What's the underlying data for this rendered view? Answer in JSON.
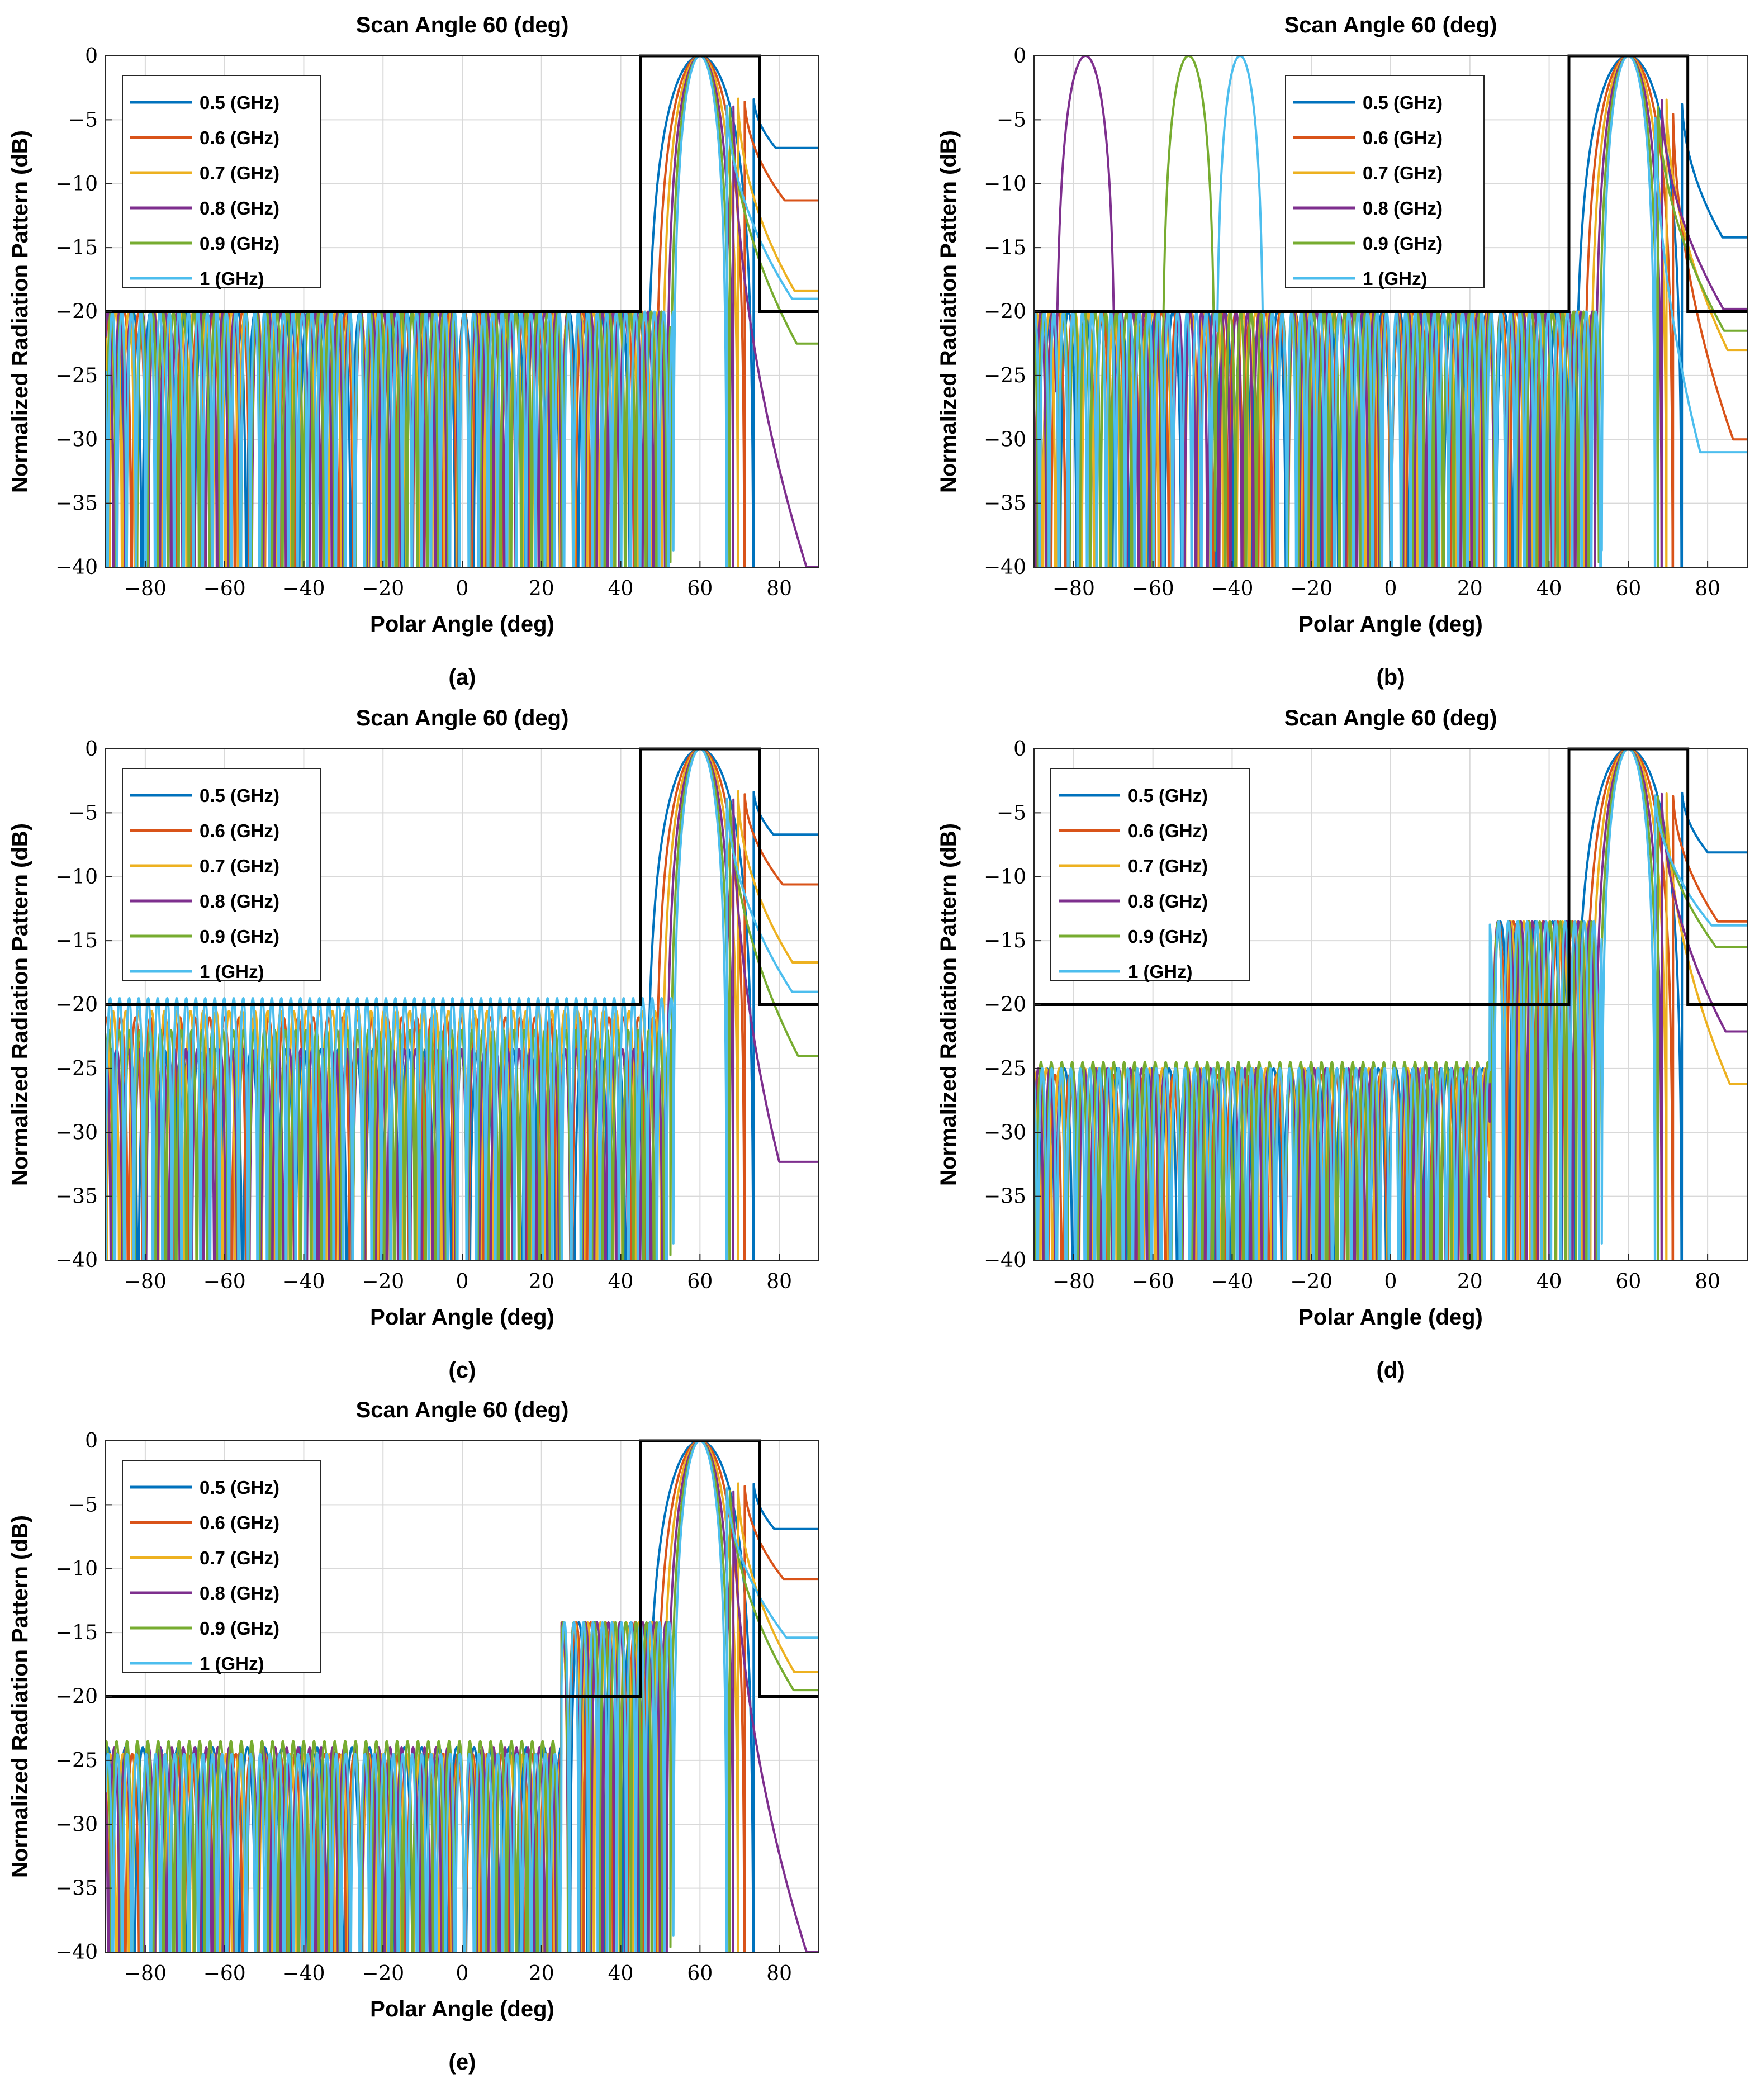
{
  "figure": {
    "panels": [
      {
        "id": "a",
        "caption": "(a)",
        "title": "Scan Angle 60 (deg)",
        "xlabel": "Polar Angle (deg)",
        "ylabel": "Normalized Radiation Pattern (dB)"
      },
      {
        "id": "b",
        "caption": "(b)",
        "title": "Scan Angle 60 (deg)",
        "xlabel": "Polar Angle (deg)",
        "ylabel": "Normalized Radiation Pattern (dB)"
      },
      {
        "id": "c",
        "caption": "(c)",
        "title": "Scan Angle 60 (deg)",
        "xlabel": "Polar Angle (deg)",
        "ylabel": "Normalized Radiation Pattern (dB)"
      },
      {
        "id": "d",
        "caption": "(d)",
        "title": "Scan Angle 60 (deg)",
        "xlabel": "Polar Angle (deg)",
        "ylabel": "Normalized Radiation Pattern (dB)"
      },
      {
        "id": "e",
        "caption": "(e)",
        "title": "Scan Angle 60 (deg)",
        "xlabel": "Polar Angle (deg)",
        "ylabel": "Normalized Radiation Pattern (dB)"
      }
    ]
  },
  "chart_data": [
    {
      "panel": "a",
      "type": "line",
      "title": "Scan Angle 60 (deg)",
      "xlabel": "Polar Angle (deg)",
      "ylabel": "Normalized Radiation Pattern (dB)",
      "xlim": [
        -90,
        90
      ],
      "ylim": [
        -40,
        0
      ],
      "xticks": [
        -80,
        -60,
        -40,
        -20,
        0,
        20,
        40,
        60,
        80
      ],
      "xtick_labels": [
        "−80",
        "−60",
        "−40",
        "−20",
        "0",
        "20",
        "40",
        "60",
        "80"
      ],
      "yticks": [
        0,
        -5,
        -10,
        -15,
        -20,
        -25,
        -30,
        -35,
        -40
      ],
      "ytick_labels": [
        "0",
        "−5",
        "−10",
        "−15",
        "−20",
        "−25",
        "−30",
        "−35",
        "−40"
      ],
      "grid": true,
      "legend_location": "top-left",
      "mask": {
        "sidelobe_level_db": -20,
        "mainbeam_region_deg": [
          45,
          75
        ],
        "mainbeam_level_db": 0
      },
      "scan_angle_deg": 60,
      "series": [
        {
          "name": "0.5 (GHz)",
          "color": "#0072BD",
          "peak_deg": 60,
          "peak_db": 0,
          "sidelobe_level_db": -20,
          "end_level_db": -7.2
        },
        {
          "name": "0.6 (GHz)",
          "color": "#D95319",
          "peak_deg": 60,
          "peak_db": 0,
          "sidelobe_level_db": -20,
          "end_level_db": -11.3
        },
        {
          "name": "0.7 (GHz)",
          "color": "#EDB120",
          "peak_deg": 60,
          "peak_db": 0,
          "sidelobe_level_db": -20,
          "end_level_db": -18.4
        },
        {
          "name": "0.8 (GHz)",
          "color": "#7E2F8E",
          "peak_deg": 60,
          "peak_db": 0,
          "sidelobe_level_db": -20,
          "end_level_db": -40
        },
        {
          "name": "0.9 (GHz)",
          "color": "#77AC30",
          "peak_deg": 60,
          "peak_db": 0,
          "sidelobe_level_db": -20,
          "end_level_db": -22.5
        },
        {
          "name": "1 (GHz)",
          "color": "#4DBEEE",
          "peak_deg": 60,
          "peak_db": 0,
          "sidelobe_level_db": -20,
          "end_level_db": -19
        }
      ]
    },
    {
      "panel": "b",
      "type": "line",
      "title": "Scan Angle 60 (deg)",
      "xlabel": "Polar Angle (deg)",
      "ylabel": "Normalized Radiation Pattern (dB)",
      "xlim": [
        -90,
        90
      ],
      "ylim": [
        -40,
        0
      ],
      "xticks": [
        -80,
        -60,
        -40,
        -20,
        0,
        20,
        40,
        60,
        80
      ],
      "xtick_labels": [
        "−80",
        "−60",
        "−40",
        "−20",
        "0",
        "20",
        "40",
        "60",
        "80"
      ],
      "yticks": [
        0,
        -5,
        -10,
        -15,
        -20,
        -25,
        -30,
        -35,
        -40
      ],
      "ytick_labels": [
        "0",
        "−5",
        "−10",
        "−15",
        "−20",
        "−25",
        "−30",
        "−35",
        "−40"
      ],
      "grid": true,
      "legend_location": "top-center",
      "mask": {
        "sidelobe_level_db": -20,
        "mainbeam_region_deg": [
          45,
          75
        ],
        "mainbeam_level_db": 0
      },
      "scan_angle_deg": 60,
      "series": [
        {
          "name": "0.5 (GHz)",
          "color": "#0072BD",
          "peak_deg": 60,
          "peak_db": 0,
          "sidelobe_level_db": -20,
          "end_level_db": -14.2
        },
        {
          "name": "0.6 (GHz)",
          "color": "#D95319",
          "peak_deg": 60,
          "peak_db": 0,
          "sidelobe_level_db": -20,
          "end_level_db": -30
        },
        {
          "name": "0.7 (GHz)",
          "color": "#EDB120",
          "peak_deg": 60,
          "peak_db": 0,
          "sidelobe_level_db": -20,
          "end_level_db": -23
        },
        {
          "name": "0.8 (GHz)",
          "color": "#7E2F8E",
          "peak_deg": 60,
          "peak_db": 0,
          "sidelobe_level_db": -20,
          "end_level_db": -19.8,
          "grating_lobe_deg": -77
        },
        {
          "name": "0.9 (GHz)",
          "color": "#77AC30",
          "peak_deg": 60,
          "peak_db": 0,
          "sidelobe_level_db": -20,
          "end_level_db": -21.5,
          "grating_lobe_deg": -51
        },
        {
          "name": "1 (GHz)",
          "color": "#4DBEEE",
          "peak_deg": 60,
          "peak_db": 0,
          "sidelobe_level_db": -20,
          "end_level_db": -31,
          "grating_lobe_deg": -38
        }
      ]
    },
    {
      "panel": "c",
      "type": "line",
      "title": "Scan Angle 60 (deg)",
      "xlabel": "Polar Angle (deg)",
      "ylabel": "Normalized Radiation Pattern (dB)",
      "xlim": [
        -90,
        90
      ],
      "ylim": [
        -40,
        0
      ],
      "xticks": [
        -80,
        -60,
        -40,
        -20,
        0,
        20,
        40,
        60,
        80
      ],
      "xtick_labels": [
        "−80",
        "−60",
        "−40",
        "−20",
        "0",
        "20",
        "40",
        "60",
        "80"
      ],
      "yticks": [
        0,
        -5,
        -10,
        -15,
        -20,
        -25,
        -30,
        -35,
        -40
      ],
      "ytick_labels": [
        "0",
        "−5",
        "−10",
        "−15",
        "−20",
        "−25",
        "−30",
        "−35",
        "−40"
      ],
      "grid": true,
      "legend_location": "top-left",
      "mask": {
        "sidelobe_level_db": -20,
        "mainbeam_region_deg": [
          45,
          75
        ],
        "mainbeam_level_db": 0
      },
      "scan_angle_deg": 60,
      "series": [
        {
          "name": "0.5 (GHz)",
          "color": "#0072BD",
          "peak_deg": 60,
          "peak_db": 0,
          "sidelobe_level_db": -23.5,
          "end_level_db": -6.7
        },
        {
          "name": "0.6 (GHz)",
          "color": "#D95319",
          "peak_deg": 60,
          "peak_db": 0,
          "sidelobe_level_db": -21,
          "end_level_db": -10.6
        },
        {
          "name": "0.7 (GHz)",
          "color": "#EDB120",
          "peak_deg": 60,
          "peak_db": 0,
          "sidelobe_level_db": -20.5,
          "end_level_db": -16.7
        },
        {
          "name": "0.8 (GHz)",
          "color": "#7E2F8E",
          "peak_deg": 60,
          "peak_db": 0,
          "sidelobe_level_db": -23.5,
          "end_level_db": -32.3
        },
        {
          "name": "0.9 (GHz)",
          "color": "#77AC30",
          "peak_deg": 60,
          "peak_db": 0,
          "sidelobe_level_db": -22,
          "end_level_db": -24
        },
        {
          "name": "1 (GHz)",
          "color": "#4DBEEE",
          "peak_deg": 60,
          "peak_db": 0,
          "sidelobe_level_db": -19.5,
          "end_level_db": -19
        }
      ]
    },
    {
      "panel": "d",
      "type": "line",
      "title": "Scan Angle 60 (deg)",
      "xlabel": "Polar Angle (deg)",
      "ylabel": "Normalized Radiation Pattern (dB)",
      "xlim": [
        -90,
        90
      ],
      "ylim": [
        -40,
        0
      ],
      "xticks": [
        -80,
        -60,
        -40,
        -20,
        0,
        20,
        40,
        60,
        80
      ],
      "xtick_labels": [
        "−80",
        "−60",
        "−40",
        "−20",
        "0",
        "20",
        "40",
        "60",
        "80"
      ],
      "yticks": [
        0,
        -5,
        -10,
        -15,
        -20,
        -25,
        -30,
        -35,
        -40
      ],
      "ytick_labels": [
        "0",
        "−5",
        "−10",
        "−15",
        "−20",
        "−25",
        "−30",
        "−35",
        "−40"
      ],
      "grid": true,
      "legend_location": "top-left",
      "mask": {
        "sidelobe_level_db": -20,
        "mainbeam_region_deg": [
          45,
          75
        ],
        "mainbeam_level_db": 0
      },
      "scan_angle_deg": 60,
      "series": [
        {
          "name": "0.5 (GHz)",
          "color": "#0072BD",
          "peak_deg": 60,
          "peak_db": 0,
          "sidelobe_level_db": -25,
          "near_lobe_db": -13.5,
          "end_level_db": -8.1
        },
        {
          "name": "0.6 (GHz)",
          "color": "#D95319",
          "peak_deg": 60,
          "peak_db": 0,
          "sidelobe_level_db": -25.5,
          "near_lobe_db": -13.5,
          "end_level_db": -13.5
        },
        {
          "name": "0.7 (GHz)",
          "color": "#EDB120",
          "peak_deg": 60,
          "peak_db": 0,
          "sidelobe_level_db": -25,
          "near_lobe_db": -13.5,
          "end_level_db": -26.2
        },
        {
          "name": "0.8 (GHz)",
          "color": "#7E2F8E",
          "peak_deg": 60,
          "peak_db": 0,
          "sidelobe_level_db": -25,
          "near_lobe_db": -13.5,
          "end_level_db": -22.1
        },
        {
          "name": "0.9 (GHz)",
          "color": "#77AC30",
          "peak_deg": 60,
          "peak_db": 0,
          "sidelobe_level_db": -24.5,
          "near_lobe_db": -13.5,
          "end_level_db": -15.5
        },
        {
          "name": "1 (GHz)",
          "color": "#4DBEEE",
          "peak_deg": 60,
          "peak_db": 0,
          "sidelobe_level_db": -25,
          "near_lobe_db": -13.5,
          "end_level_db": -13.8
        }
      ]
    },
    {
      "panel": "e",
      "type": "line",
      "title": "Scan Angle 60 (deg)",
      "xlabel": "Polar Angle (deg)",
      "ylabel": "Normalized Radiation Pattern (dB)",
      "xlim": [
        -90,
        90
      ],
      "ylim": [
        -40,
        0
      ],
      "xticks": [
        -80,
        -60,
        -40,
        -20,
        0,
        20,
        40,
        60,
        80
      ],
      "xtick_labels": [
        "−80",
        "−60",
        "−40",
        "−20",
        "0",
        "20",
        "40",
        "60",
        "80"
      ],
      "yticks": [
        0,
        -5,
        -10,
        -15,
        -20,
        -25,
        -30,
        -35,
        -40
      ],
      "ytick_labels": [
        "0",
        "−5",
        "−10",
        "−15",
        "−20",
        "−25",
        "−30",
        "−35",
        "−40"
      ],
      "grid": true,
      "legend_location": "top-left",
      "mask": {
        "sidelobe_level_db": -20,
        "mainbeam_region_deg": [
          45,
          75
        ],
        "mainbeam_level_db": 0
      },
      "scan_angle_deg": 60,
      "series": [
        {
          "name": "0.5 (GHz)",
          "color": "#0072BD",
          "peak_deg": 60,
          "peak_db": 0,
          "sidelobe_level_db": -24,
          "near_lobe_db": -14.2,
          "end_level_db": -6.9
        },
        {
          "name": "0.6 (GHz)",
          "color": "#D95319",
          "peak_deg": 60,
          "peak_db": 0,
          "sidelobe_level_db": -24.5,
          "near_lobe_db": -14.2,
          "end_level_db": -10.8
        },
        {
          "name": "0.7 (GHz)",
          "color": "#EDB120",
          "peak_deg": 60,
          "peak_db": 0,
          "sidelobe_level_db": -24.5,
          "near_lobe_db": -14.2,
          "end_level_db": -18.1
        },
        {
          "name": "0.8 (GHz)",
          "color": "#7E2F8E",
          "peak_deg": 60,
          "peak_db": 0,
          "sidelobe_level_db": -24,
          "near_lobe_db": -14.2,
          "end_level_db": -40
        },
        {
          "name": "0.9 (GHz)",
          "color": "#77AC30",
          "peak_deg": 60,
          "peak_db": 0,
          "sidelobe_level_db": -23.5,
          "near_lobe_db": -14.2,
          "end_level_db": -19.5
        },
        {
          "name": "1 (GHz)",
          "color": "#4DBEEE",
          "peak_deg": 60,
          "peak_db": 0,
          "sidelobe_level_db": -24.5,
          "near_lobe_db": -14.2,
          "end_level_db": -15.4
        }
      ]
    }
  ]
}
